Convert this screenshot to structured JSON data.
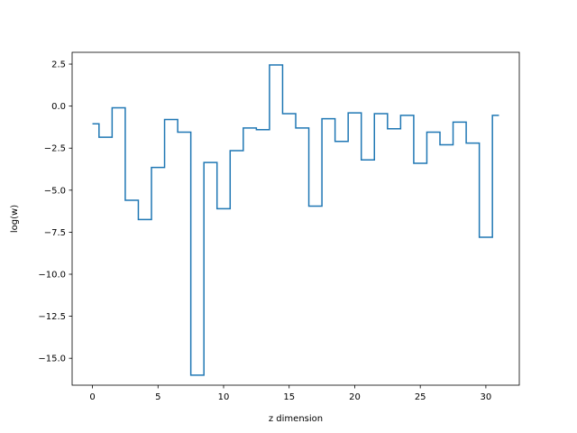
{
  "chart_data": {
    "type": "line",
    "drawstyle": "steps-mid",
    "title": "",
    "xlabel": "z dimension",
    "ylabel": "log(w)",
    "xlim": [
      -1.55,
      32.55
    ],
    "ylim": [
      -16.6,
      3.2
    ],
    "xticks": [
      0,
      5,
      10,
      15,
      20,
      25,
      30
    ],
    "xtick_labels": [
      "0",
      "5",
      "10",
      "15",
      "20",
      "25",
      "30"
    ],
    "yticks": [
      2.5,
      0.0,
      -2.5,
      -5.0,
      -7.5,
      -10.0,
      -12.5,
      -15.0
    ],
    "ytick_labels": [
      "2.5",
      "0.0",
      "−2.5",
      "−5.0",
      "−7.5",
      "−10.0",
      "−12.5",
      "−15.0"
    ],
    "grid": false,
    "color": "#1f77b4",
    "x": [
      0,
      1,
      2,
      3,
      4,
      5,
      6,
      7,
      8,
      9,
      10,
      11,
      12,
      13,
      14,
      15,
      16,
      17,
      18,
      19,
      20,
      21,
      22,
      23,
      24,
      25,
      26,
      27,
      28,
      29,
      30,
      31
    ],
    "values": [
      -1.05,
      -1.85,
      -0.1,
      -5.6,
      -6.75,
      -3.65,
      -0.8,
      -1.55,
      -16.0,
      -3.35,
      -6.1,
      -2.65,
      -1.3,
      -1.4,
      2.45,
      -0.45,
      -1.3,
      -5.95,
      -0.75,
      -2.1,
      -0.4,
      -3.2,
      -0.45,
      -1.35,
      -0.55,
      -3.4,
      -1.55,
      -2.3,
      -0.95,
      -2.2,
      -7.8,
      -0.55
    ]
  }
}
